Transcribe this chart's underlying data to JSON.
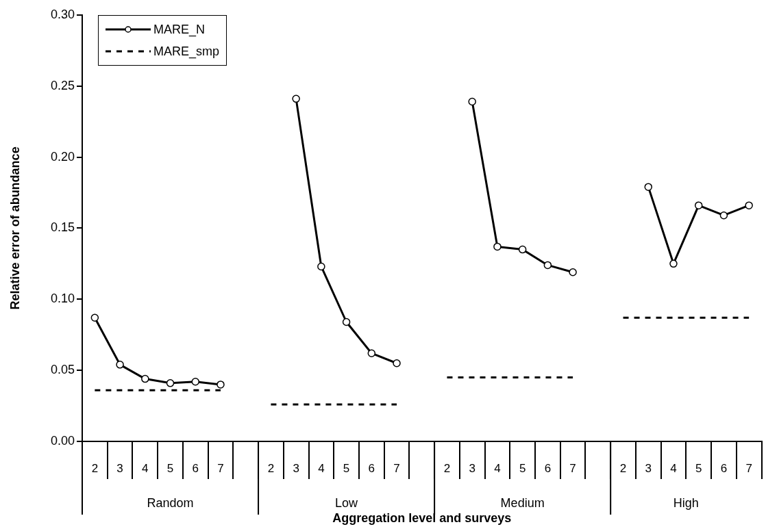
{
  "chart_data": {
    "type": "line",
    "xlabel": "Aggregation level and surveys",
    "ylabel": "Relative error of abundance",
    "categories": [
      "2",
      "3",
      "4",
      "5",
      "6",
      "7",
      null,
      "2",
      "3",
      "4",
      "5",
      "6",
      "7",
      null,
      "2",
      "3",
      "4",
      "5",
      "6",
      "7",
      null,
      "2",
      "3",
      "4",
      "5",
      "6",
      "7"
    ],
    "annotations": [
      "Random",
      "Low",
      "Medium",
      "High"
    ],
    "series": [
      {
        "name": "MARE_N",
        "color": "#000000",
        "marker": "circle",
        "line_style": "solid",
        "values": [
          0.087,
          0.054,
          0.044,
          0.041,
          0.042,
          0.04,
          null,
          null,
          0.241,
          0.123,
          0.084,
          0.062,
          0.055,
          null,
          null,
          0.239,
          0.137,
          0.135,
          0.124,
          0.119,
          null,
          null,
          0.179,
          0.125,
          0.166,
          0.159,
          0.166
        ]
      },
      {
        "name": "MARE_smp",
        "color": "#000000",
        "marker": "none",
        "line_style": "dashed",
        "values": [
          0.036,
          0.036,
          0.036,
          0.036,
          0.036,
          0.036,
          null,
          0.026,
          0.026,
          0.026,
          0.026,
          0.026,
          0.026,
          null,
          0.045,
          0.045,
          0.045,
          0.045,
          0.045,
          0.045,
          null,
          0.087,
          0.087,
          0.087,
          0.087,
          0.087,
          0.087
        ]
      }
    ],
    "ylim": [
      0,
      0.3
    ],
    "yticks": [
      {
        "value": 0,
        "label": "0.00"
      },
      0.05,
      {
        "value": 0.1,
        "label": "0.10"
      },
      0.15,
      {
        "value": 0.2,
        "label": "0.20"
      },
      0.25,
      {
        "value": 0.3,
        "label": "0.30"
      }
    ],
    "grid": false,
    "legend": "top left"
  }
}
